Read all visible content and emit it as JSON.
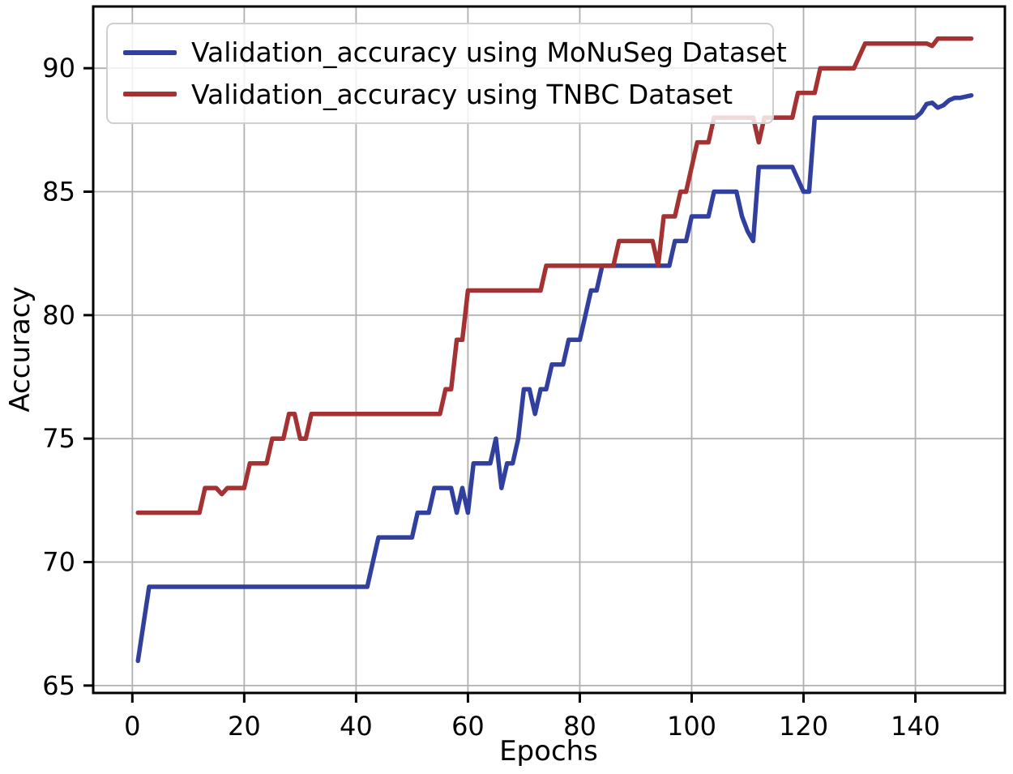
{
  "figure": {
    "background": "#ffffff"
  },
  "chart_data": {
    "type": "line",
    "title": "",
    "xlabel": "Epochs",
    "ylabel": "Accuracy",
    "grid": true,
    "legend_position": "upper left",
    "x_ticks": [
      0,
      20,
      40,
      60,
      80,
      100,
      120,
      140
    ],
    "y_ticks": [
      65,
      70,
      75,
      80,
      85,
      90
    ],
    "xlim": [
      -7,
      156
    ],
    "ylim": [
      64.7,
      92.5
    ],
    "x_start_epoch": 1,
    "colors": {
      "grid": "#b0b0b0",
      "spine": "#000000",
      "tick_text": "#000000",
      "monuseg_blue": "#31409f",
      "tnbc_red": "#a43232",
      "legend_border": "#cfcfcf"
    },
    "series": [
      {
        "name": "Validation_accuracy using MoNuSeg Dataset",
        "color": "#31409f",
        "values": [
          66,
          67.5,
          69,
          69,
          69,
          69,
          69,
          69,
          69,
          69,
          69,
          69,
          69,
          69,
          69,
          69,
          69,
          69,
          69,
          69,
          69,
          69,
          69,
          69,
          69,
          69,
          69,
          69,
          69,
          69,
          69,
          69,
          69,
          69,
          69,
          69,
          69,
          69,
          69,
          69,
          69,
          69,
          70,
          71,
          71,
          71,
          71,
          71,
          71,
          71,
          72,
          72,
          72,
          73,
          73,
          73,
          73,
          72,
          73,
          72,
          74,
          74,
          74,
          74,
          75,
          73,
          74,
          74,
          75,
          77,
          77,
          76,
          77,
          77,
          78,
          78,
          78,
          79,
          79,
          79,
          80,
          81,
          81,
          82,
          82,
          82,
          82,
          82,
          82,
          82,
          82,
          82,
          82,
          82,
          82,
          82,
          83,
          83,
          83,
          84,
          84,
          84,
          84,
          85,
          85,
          85,
          85,
          85,
          84,
          83.4,
          83,
          86,
          86,
          86,
          86,
          86,
          86,
          86,
          85.5,
          85,
          85,
          88,
          88,
          88,
          88,
          88,
          88,
          88,
          88,
          88,
          88,
          88,
          88,
          88,
          88,
          88,
          88,
          88,
          88,
          88,
          88.2,
          88.55,
          88.6,
          88.4,
          88.5,
          88.7,
          88.8,
          88.8,
          88.85,
          88.9
        ]
      },
      {
        "name": "Validation_accuracy using TNBC Dataset",
        "color": "#a43232",
        "values": [
          72,
          72,
          72,
          72,
          72,
          72,
          72,
          72,
          72,
          72,
          72,
          72,
          73,
          73,
          73,
          72.75,
          73,
          73,
          73,
          73,
          74,
          74,
          74,
          74,
          75,
          75,
          75,
          76,
          76,
          75,
          75,
          76,
          76,
          76,
          76,
          76,
          76,
          76,
          76,
          76,
          76,
          76,
          76,
          76,
          76,
          76,
          76,
          76,
          76,
          76,
          76,
          76,
          76,
          76,
          76,
          77,
          77,
          79,
          79,
          81,
          81,
          81,
          81,
          81,
          81,
          81,
          81,
          81,
          81,
          81,
          81,
          81,
          81,
          82,
          82,
          82,
          82,
          82,
          82,
          82,
          82,
          82,
          82,
          82,
          82,
          82,
          83,
          83,
          83,
          83,
          83,
          83,
          83,
          82,
          84,
          84,
          84,
          85,
          85,
          86,
          87,
          87,
          87,
          88,
          88,
          88,
          88,
          88,
          88,
          88,
          88,
          87,
          88,
          88,
          88,
          88,
          88,
          88,
          89,
          89,
          89,
          89,
          90,
          90,
          90,
          90,
          90,
          90,
          90,
          90.5,
          91,
          91,
          91,
          91,
          91,
          91,
          91,
          91,
          91,
          91,
          91,
          91,
          90.9,
          91.2,
          91.2,
          91.2,
          91.2,
          91.2,
          91.2,
          91.2
        ]
      }
    ]
  }
}
